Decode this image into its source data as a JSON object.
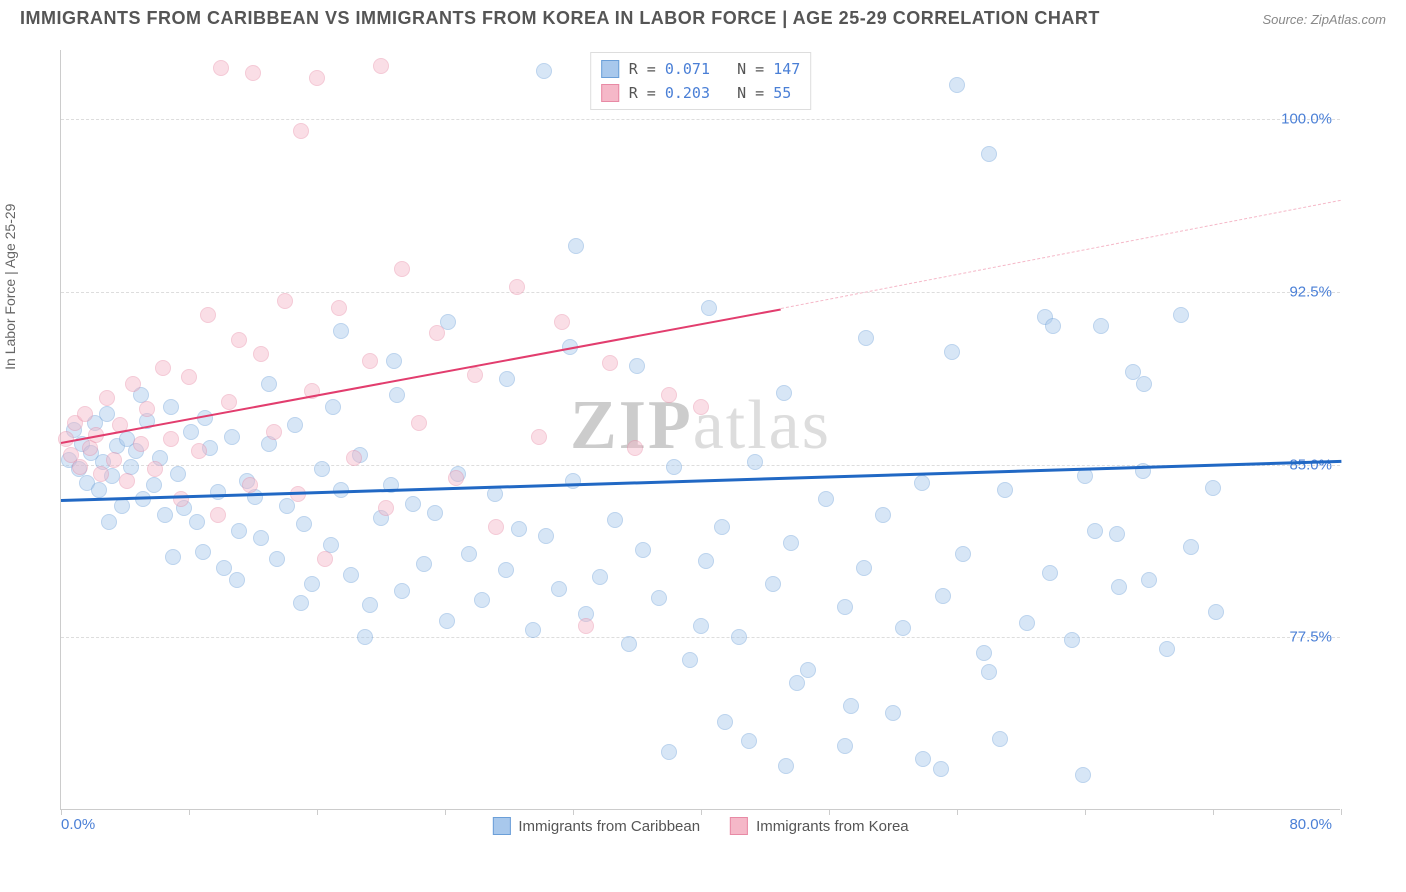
{
  "title": "IMMIGRANTS FROM CARIBBEAN VS IMMIGRANTS FROM KOREA IN LABOR FORCE | AGE 25-29 CORRELATION CHART",
  "source": "Source: ZipAtlas.com",
  "ylabel": "In Labor Force | Age 25-29",
  "watermark_bold": "ZIP",
  "watermark_rest": "atlas",
  "chart": {
    "type": "scatter",
    "xlim": [
      0,
      80
    ],
    "ylim": [
      70,
      103
    ],
    "y_gridlines": [
      77.5,
      85.0,
      92.5,
      100.0
    ],
    "y_tick_labels": [
      "77.5%",
      "85.0%",
      "92.5%",
      "100.0%"
    ],
    "x_tick_labels": {
      "left": "0.0%",
      "right": "80.0%"
    },
    "x_tick_positions": [
      0,
      8,
      16,
      24,
      32,
      40,
      48,
      56,
      64,
      72,
      80
    ],
    "background_color": "#ffffff",
    "grid_color": "#dddddd",
    "axis_color": "#cccccc",
    "tick_label_color": "#4a7fd6",
    "point_radius": 8,
    "point_opacity": 0.45,
    "series": [
      {
        "name": "Immigrants from Caribbean",
        "fill_color": "#a8c8ec",
        "stroke_color": "#6b9fd8",
        "R": "0.071",
        "N": "147",
        "trend": {
          "x1": 0,
          "y1": 83.5,
          "x2": 80,
          "y2": 85.2,
          "color": "#2168c4",
          "width": 3,
          "dash": false
        },
        "points": [
          [
            0.5,
            85.2
          ],
          [
            0.8,
            86.5
          ],
          [
            1.1,
            84.8
          ],
          [
            1.3,
            85.9
          ],
          [
            1.6,
            84.2
          ],
          [
            1.9,
            85.5
          ],
          [
            2.1,
            86.8
          ],
          [
            2.4,
            83.9
          ],
          [
            2.6,
            85.1
          ],
          [
            2.9,
            87.2
          ],
          [
            3.2,
            84.5
          ],
          [
            3.5,
            85.8
          ],
          [
            3.8,
            83.2
          ],
          [
            4.1,
            86.1
          ],
          [
            4.4,
            84.9
          ],
          [
            4.7,
            85.6
          ],
          [
            5.1,
            83.5
          ],
          [
            5.4,
            86.9
          ],
          [
            5.8,
            84.1
          ],
          [
            6.2,
            85.3
          ],
          [
            6.5,
            82.8
          ],
          [
            6.9,
            87.5
          ],
          [
            7.3,
            84.6
          ],
          [
            7.7,
            83.1
          ],
          [
            8.1,
            86.4
          ],
          [
            8.5,
            82.5
          ],
          [
            8.9,
            81.2
          ],
          [
            9.3,
            85.7
          ],
          [
            9.8,
            83.8
          ],
          [
            10.2,
            80.5
          ],
          [
            10.7,
            86.2
          ],
          [
            11.1,
            82.1
          ],
          [
            11.6,
            84.3
          ],
          [
            12.1,
            83.6
          ],
          [
            12.5,
            81.8
          ],
          [
            13.0,
            85.9
          ],
          [
            13.5,
            80.9
          ],
          [
            14.1,
            83.2
          ],
          [
            14.6,
            86.7
          ],
          [
            15.2,
            82.4
          ],
          [
            15.7,
            79.8
          ],
          [
            16.3,
            84.8
          ],
          [
            16.9,
            81.5
          ],
          [
            17.5,
            83.9
          ],
          [
            18.1,
            80.2
          ],
          [
            18.7,
            85.4
          ],
          [
            19.3,
            78.9
          ],
          [
            20.0,
            82.7
          ],
          [
            20.6,
            84.1
          ],
          [
            21.3,
            79.5
          ],
          [
            22.0,
            83.3
          ],
          [
            22.7,
            80.7
          ],
          [
            23.4,
            82.9
          ],
          [
            24.1,
            78.2
          ],
          [
            24.8,
            84.6
          ],
          [
            25.5,
            81.1
          ],
          [
            26.3,
            79.1
          ],
          [
            27.1,
            83.7
          ],
          [
            27.8,
            80.4
          ],
          [
            28.6,
            82.2
          ],
          [
            29.5,
            77.8
          ],
          [
            30.3,
            81.9
          ],
          [
            31.1,
            79.6
          ],
          [
            30.2,
            102.1
          ],
          [
            32.0,
            84.3
          ],
          [
            32.2,
            94.5
          ],
          [
            32.8,
            78.5
          ],
          [
            33.7,
            80.1
          ],
          [
            34.6,
            82.6
          ],
          [
            35.5,
            77.2
          ],
          [
            36.5,
            102.4
          ],
          [
            36.4,
            81.3
          ],
          [
            37.4,
            79.2
          ],
          [
            38.3,
            84.9
          ],
          [
            39.3,
            76.5
          ],
          [
            40.3,
            80.8
          ],
          [
            41.3,
            82.3
          ],
          [
            42.4,
            77.5
          ],
          [
            43.4,
            85.1
          ],
          [
            44.5,
            79.8
          ],
          [
            45.6,
            81.6
          ],
          [
            46.7,
            76.1
          ],
          [
            47.8,
            83.5
          ],
          [
            49.0,
            78.8
          ],
          [
            50.2,
            80.5
          ],
          [
            51.4,
            82.8
          ],
          [
            52.6,
            77.9
          ],
          [
            53.8,
            84.2
          ],
          [
            55.1,
            79.3
          ],
          [
            56.4,
            81.1
          ],
          [
            57.7,
            76.8
          ],
          [
            59.0,
            83.9
          ],
          [
            60.4,
            78.1
          ],
          [
            61.8,
            80.3
          ],
          [
            63.2,
            77.4
          ],
          [
            64.6,
            82.1
          ],
          [
            66.1,
            79.7
          ],
          [
            67.6,
            84.7
          ],
          [
            69.1,
            77.0
          ],
          [
            70.6,
            81.4
          ],
          [
            72.2,
            78.6
          ],
          [
            17.5,
            90.8
          ],
          [
            20.8,
            89.5
          ],
          [
            24.2,
            91.2
          ],
          [
            27.9,
            88.7
          ],
          [
            31.8,
            90.1
          ],
          [
            36.0,
            89.3
          ],
          [
            40.5,
            91.8
          ],
          [
            45.2,
            88.1
          ],
          [
            50.3,
            90.5
          ],
          [
            55.7,
            89.9
          ],
          [
            61.5,
            91.4
          ],
          [
            67.7,
            88.5
          ],
          [
            38.0,
            72.5
          ],
          [
            41.5,
            73.8
          ],
          [
            45.3,
            71.9
          ],
          [
            49.4,
            74.5
          ],
          [
            53.9,
            72.2
          ],
          [
            58.7,
            73.1
          ],
          [
            63.9,
            71.5
          ],
          [
            40.0,
            78.0
          ],
          [
            43.0,
            73.0
          ],
          [
            46.0,
            75.5
          ],
          [
            49.0,
            72.8
          ],
          [
            52.0,
            74.2
          ],
          [
            55.0,
            71.8
          ],
          [
            58.0,
            76.0
          ],
          [
            65.0,
            91.0
          ],
          [
            67.0,
            89.0
          ],
          [
            56.0,
            101.5
          ],
          [
            58.0,
            98.5
          ],
          [
            62.0,
            91.0
          ],
          [
            64.0,
            84.5
          ],
          [
            66.0,
            82.0
          ],
          [
            68.0,
            80.0
          ],
          [
            70.0,
            91.5
          ],
          [
            72.0,
            84.0
          ],
          [
            3.0,
            82.5
          ],
          [
            5.0,
            88.0
          ],
          [
            7.0,
            81.0
          ],
          [
            9.0,
            87.0
          ],
          [
            11.0,
            80.0
          ],
          [
            13.0,
            88.5
          ],
          [
            15.0,
            79.0
          ],
          [
            17.0,
            87.5
          ],
          [
            19.0,
            77.5
          ],
          [
            21.0,
            88.0
          ]
        ]
      },
      {
        "name": "Immigrants from Korea",
        "fill_color": "#f5b8c8",
        "stroke_color": "#e88aa5",
        "R": "0.203",
        "N": "55",
        "trend": {
          "x1": 0,
          "y1": 86.0,
          "x2": 45,
          "y2": 91.8,
          "color": "#e23d6e",
          "width": 2.5,
          "dash": false
        },
        "trend_ext": {
          "x1": 45,
          "y1": 91.8,
          "x2": 80,
          "y2": 96.5,
          "color": "#f5b8c8",
          "width": 1.5,
          "dash": true
        },
        "points": [
          [
            0.3,
            86.1
          ],
          [
            0.6,
            85.4
          ],
          [
            0.9,
            86.8
          ],
          [
            1.2,
            84.9
          ],
          [
            1.5,
            87.2
          ],
          [
            1.8,
            85.7
          ],
          [
            2.2,
            86.3
          ],
          [
            2.5,
            84.6
          ],
          [
            2.9,
            87.9
          ],
          [
            3.3,
            85.2
          ],
          [
            3.7,
            86.7
          ],
          [
            4.1,
            84.3
          ],
          [
            4.5,
            88.5
          ],
          [
            5.0,
            85.9
          ],
          [
            5.4,
            87.4
          ],
          [
            5.9,
            84.8
          ],
          [
            6.4,
            89.2
          ],
          [
            6.9,
            86.1
          ],
          [
            7.5,
            83.5
          ],
          [
            8.0,
            88.8
          ],
          [
            8.6,
            85.6
          ],
          [
            9.2,
            91.5
          ],
          [
            9.8,
            82.8
          ],
          [
            10.5,
            87.7
          ],
          [
            11.1,
            90.4
          ],
          [
            11.8,
            84.1
          ],
          [
            12.5,
            89.8
          ],
          [
            10.0,
            102.2
          ],
          [
            13.3,
            86.4
          ],
          [
            14.0,
            92.1
          ],
          [
            14.8,
            83.7
          ],
          [
            15.7,
            88.2
          ],
          [
            12.0,
            102.0
          ],
          [
            16.5,
            80.9
          ],
          [
            16.0,
            101.8
          ],
          [
            17.4,
            91.8
          ],
          [
            18.3,
            85.3
          ],
          [
            19.3,
            89.5
          ],
          [
            20.3,
            83.1
          ],
          [
            21.3,
            93.5
          ],
          [
            22.4,
            86.8
          ],
          [
            20.0,
            102.3
          ],
          [
            23.5,
            90.7
          ],
          [
            24.7,
            84.4
          ],
          [
            25.9,
            88.9
          ],
          [
            27.2,
            82.3
          ],
          [
            28.5,
            92.7
          ],
          [
            29.9,
            86.2
          ],
          [
            15.0,
            99.5
          ],
          [
            31.3,
            91.2
          ],
          [
            32.8,
            78.0
          ],
          [
            34.3,
            89.4
          ],
          [
            35.9,
            85.7
          ],
          [
            38.0,
            88.0
          ],
          [
            40.0,
            87.5
          ]
        ]
      }
    ],
    "legend_stats": [
      {
        "swatch_fill": "#a8c8ec",
        "swatch_stroke": "#6b9fd8",
        "R_label": "R =",
        "R": "0.071",
        "N_label": "N =",
        "N": "147"
      },
      {
        "swatch_fill": "#f5b8c8",
        "swatch_stroke": "#e88aa5",
        "R_label": "R =",
        "R": "0.203",
        "N_label": "N =",
        "N": "55"
      }
    ],
    "legend_bottom": [
      {
        "swatch_fill": "#a8c8ec",
        "swatch_stroke": "#6b9fd8",
        "label": "Immigrants from Caribbean"
      },
      {
        "swatch_fill": "#f5b8c8",
        "swatch_stroke": "#e88aa5",
        "label": "Immigrants from Korea"
      }
    ]
  }
}
